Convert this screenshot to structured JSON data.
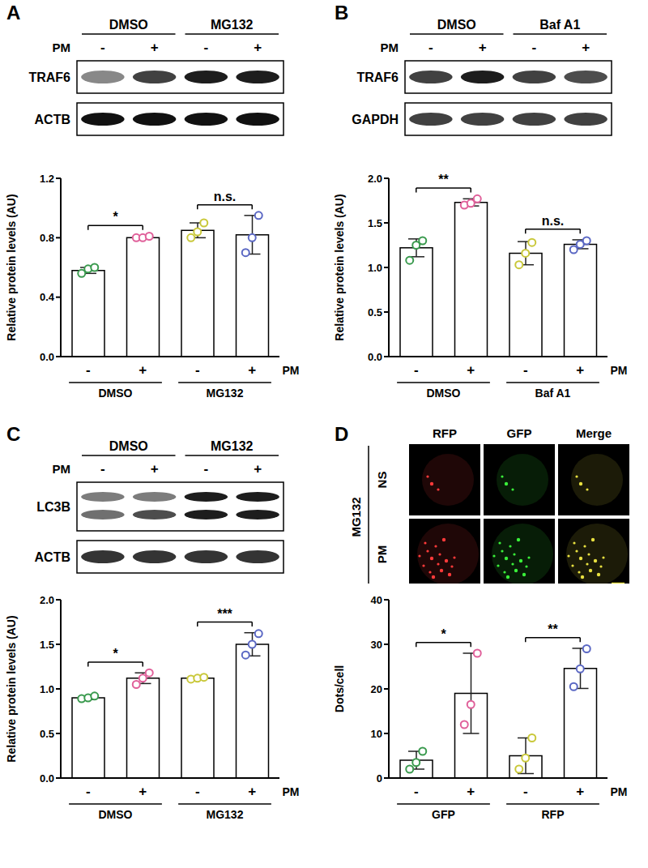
{
  "panels": [
    {
      "label": "A",
      "blot": {
        "groups": [
          "DMSO",
          "MG132"
        ],
        "treatment": "PM",
        "lane_signs": [
          "-",
          "+",
          "-",
          "+"
        ],
        "rows": [
          "TRAF6",
          "ACTB"
        ]
      }
    },
    {
      "label": "B",
      "blot": {
        "groups": [
          "DMSO",
          "Baf A1"
        ],
        "treatment": "PM",
        "lane_signs": [
          "-",
          "+",
          "-",
          "+"
        ],
        "rows": [
          "TRAF6",
          "GAPDH"
        ]
      }
    },
    {
      "label": "C",
      "blot": {
        "groups": [
          "DMSO",
          "MG132"
        ],
        "treatment": "PM",
        "lane_signs": [
          "-",
          "+",
          "-",
          "+"
        ],
        "rows": [
          "LC3B",
          "ACTB"
        ]
      }
    },
    {
      "label": "D",
      "image": {
        "columns": [
          "RFP",
          "GFP",
          "Merge"
        ],
        "side_label": "MG132",
        "rows": [
          "NS",
          "PM"
        ]
      }
    }
  ],
  "chart_data": [
    {
      "type": "bar",
      "ylabel": "Relative protein levels (AU)",
      "xlabel": "PM",
      "categories": [
        "-",
        "+",
        "-",
        "+"
      ],
      "groups": [
        {
          "label": "DMSO",
          "span": [
            0,
            1
          ]
        },
        {
          "label": "MG132",
          "span": [
            2,
            3
          ]
        }
      ],
      "values": [
        0.58,
        0.8,
        0.85,
        0.82
      ],
      "errors": [
        0.02,
        0.01,
        0.05,
        0.13
      ],
      "points": [
        [
          0.56,
          0.59,
          0.6
        ],
        [
          0.8,
          0.8,
          0.81
        ],
        [
          0.8,
          0.84,
          0.9
        ],
        [
          0.7,
          0.8,
          0.95
        ]
      ],
      "colors": [
        "#3a9a4e",
        "#e0609a",
        "#c9c83a",
        "#5b68c4"
      ],
      "ylim": [
        0,
        1.2
      ],
      "yticks": [
        {
          "value": 0,
          "label": "0.0"
        },
        {
          "value": 0.4,
          "label": "0.4"
        },
        {
          "value": 0.8,
          "label": "0.8"
        },
        {
          "value": 1.2,
          "label": "1.2"
        }
      ],
      "significance": [
        {
          "pair": [
            0,
            1
          ],
          "label": "*"
        },
        {
          "pair": [
            2,
            3
          ],
          "label": "n.s."
        }
      ]
    },
    {
      "type": "bar",
      "ylabel": "Relative protein levels (AU)",
      "xlabel": "PM",
      "categories": [
        "-",
        "+",
        "-",
        "+"
      ],
      "groups": [
        {
          "label": "DMSO",
          "span": [
            0,
            1
          ]
        },
        {
          "label": "Baf A1",
          "span": [
            2,
            3
          ]
        }
      ],
      "values": [
        1.22,
        1.73,
        1.16,
        1.26
      ],
      "errors": [
        0.1,
        0.04,
        0.13,
        0.05
      ],
      "points": [
        [
          1.08,
          1.25,
          1.3
        ],
        [
          1.7,
          1.72,
          1.77
        ],
        [
          1.03,
          1.16,
          1.28
        ],
        [
          1.2,
          1.26,
          1.3
        ]
      ],
      "colors": [
        "#3a9a4e",
        "#e0609a",
        "#c9c83a",
        "#5b68c4"
      ],
      "ylim": [
        0,
        2
      ],
      "yticks": [
        {
          "value": 0,
          "label": "0.0"
        },
        {
          "value": 0.5,
          "label": "0.5"
        },
        {
          "value": 1,
          "label": "1.0"
        },
        {
          "value": 1.5,
          "label": "1.5"
        },
        {
          "value": 2,
          "label": "2.0"
        }
      ],
      "significance": [
        {
          "pair": [
            0,
            1
          ],
          "label": "**"
        },
        {
          "pair": [
            2,
            3
          ],
          "label": "n.s."
        }
      ]
    },
    {
      "type": "bar",
      "ylabel": "Relative protein levels (AU)",
      "xlabel": "PM",
      "categories": [
        "-",
        "+",
        "-",
        "+"
      ],
      "groups": [
        {
          "label": "DMSO",
          "span": [
            0,
            1
          ]
        },
        {
          "label": "MG132",
          "span": [
            2,
            3
          ]
        }
      ],
      "values": [
        0.9,
        1.12,
        1.12,
        1.5
      ],
      "errors": [
        0.02,
        0.06,
        0.01,
        0.13
      ],
      "points": [
        [
          0.89,
          0.9,
          0.92
        ],
        [
          1.05,
          1.12,
          1.18
        ],
        [
          1.11,
          1.12,
          1.13
        ],
        [
          1.38,
          1.5,
          1.62
        ]
      ],
      "colors": [
        "#3a9a4e",
        "#e0609a",
        "#c9c83a",
        "#5b68c4"
      ],
      "ylim": [
        0,
        2
      ],
      "yticks": [
        {
          "value": 0,
          "label": "0.0"
        },
        {
          "value": 0.5,
          "label": "0.5"
        },
        {
          "value": 1,
          "label": "1.0"
        },
        {
          "value": 1.5,
          "label": "1.5"
        },
        {
          "value": 2,
          "label": "2.0"
        }
      ],
      "significance": [
        {
          "pair": [
            0,
            1
          ],
          "label": "*"
        },
        {
          "pair": [
            2,
            3
          ],
          "label": "***"
        }
      ]
    },
    {
      "type": "bar",
      "ylabel": "Dots/cell",
      "xlabel": "PM",
      "categories": [
        "-",
        "+",
        "-",
        "+"
      ],
      "groups": [
        {
          "label": "GFP",
          "span": [
            0,
            1
          ]
        },
        {
          "label": "RFP",
          "span": [
            2,
            3
          ]
        }
      ],
      "values": [
        4,
        19,
        5,
        24.6
      ],
      "errors": [
        2,
        9,
        4,
        4.5
      ],
      "points": [
        [
          2,
          3.5,
          6
        ],
        [
          12,
          16.5,
          28
        ],
        [
          2,
          4.5,
          9
        ],
        [
          20.5,
          24.5,
          29
        ]
      ],
      "colors": [
        "#3a9a4e",
        "#e0609a",
        "#c9c83a",
        "#5b68c4"
      ],
      "ylim": [
        0,
        40
      ],
      "yticks": [
        0,
        10,
        20,
        30,
        40
      ],
      "significance": [
        {
          "pair": [
            0,
            1
          ],
          "label": "*"
        },
        {
          "pair": [
            2,
            3
          ],
          "label": "**"
        }
      ]
    }
  ]
}
